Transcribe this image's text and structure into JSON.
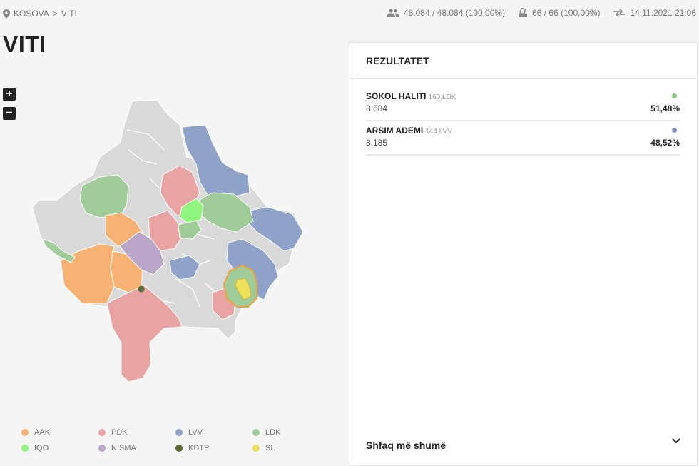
{
  "breadcrumb": {
    "root": "KOSOVA",
    "separator": ">",
    "current": "VITI"
  },
  "stats": {
    "voters": "48.084 / 48.084 (100,00%)",
    "stations": "66 / 66 (100,00%)",
    "updated": "14.11.2021 21:06"
  },
  "page_title": "VITI",
  "zoom": {
    "in": "+",
    "out": "−"
  },
  "colors": {
    "AAK": "#f7b273",
    "PDK": "#e8a3a3",
    "LVV": "#8fa3c9",
    "LDK": "#9fcc98",
    "IQO": "#8ff57c",
    "NISMA": "#b9a6c9",
    "KDTP": "#5b6b3a",
    "SL": "#ede05a",
    "none": "#d9d9d9"
  },
  "legend": [
    {
      "label": "AAK",
      "color": "#f7b273"
    },
    {
      "label": "PDK",
      "color": "#e8a3a3"
    },
    {
      "label": "LVV",
      "color": "#8fa3c9"
    },
    {
      "label": "LDK",
      "color": "#9fcc98"
    },
    {
      "label": "IQO",
      "color": "#8ff57c"
    },
    {
      "label": "NISMA",
      "color": "#b9a6c9"
    },
    {
      "label": "KDTP",
      "color": "#5b6b3a"
    },
    {
      "label": "SL",
      "color": "#ede05a"
    }
  ],
  "results": {
    "title": "REZULTATET",
    "candidates": [
      {
        "name": "SOKOL HALITI",
        "meta": "160.LDK",
        "votes": "8.684",
        "percent": "51,48%",
        "color": "#8dc387"
      },
      {
        "name": "ARSIM ADEMI",
        "meta": "144.LVV",
        "votes": "8.185",
        "percent": "48,52%",
        "color": "#7d8fb8"
      }
    ],
    "show_more": "Shfaq më shumë"
  }
}
